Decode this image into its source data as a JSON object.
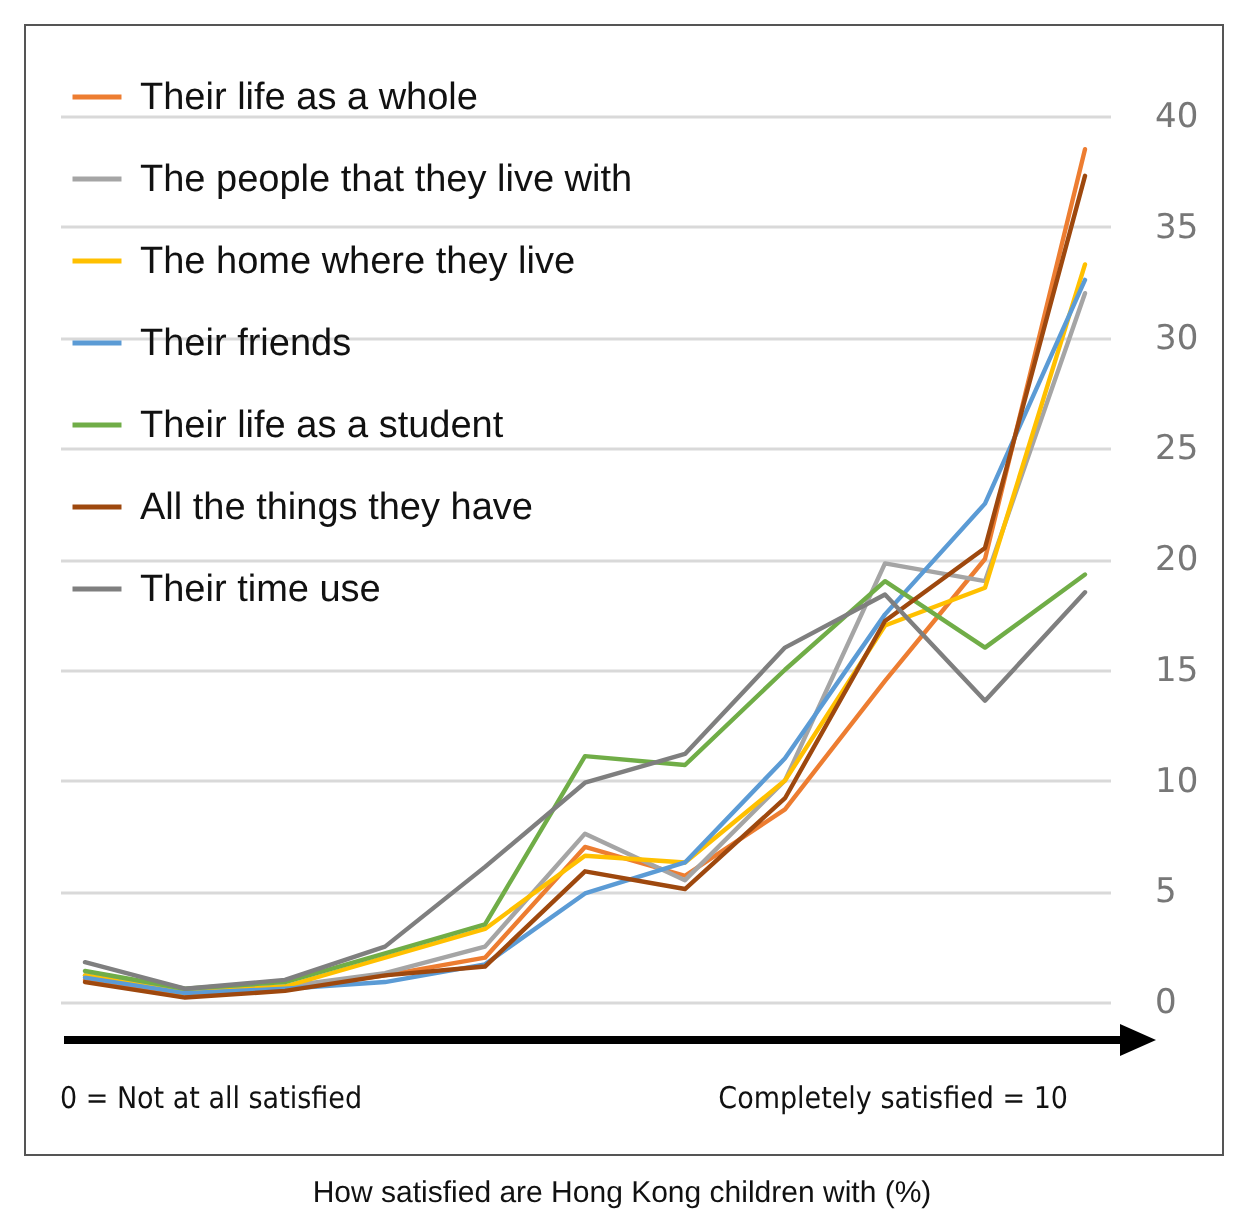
{
  "chart_data": {
    "type": "line",
    "title": "How satisfied are Hong Kong children with (%)",
    "annotations": [
      "0 = Not at all satisfied",
      "Completely satisfied = 10"
    ],
    "categories": [
      null,
      null,
      null,
      null,
      null,
      null,
      null,
      null,
      null,
      null,
      null
    ],
    "ylim": [
      0,
      40
    ],
    "yticks": [
      0,
      5,
      10,
      15,
      20,
      25,
      30,
      35,
      40
    ],
    "grid": "y",
    "legend": "top left",
    "series": [
      {
        "name": "Their life as a whole",
        "color": "#ed7d31",
        "values": [
          1.0,
          0.3,
          0.6,
          1.2,
          2.0,
          7.0,
          5.7,
          8.7,
          14.5,
          20.0,
          38.5
        ]
      },
      {
        "name": "The people that they live with",
        "color": "#a5a5a5",
        "values": [
          1.2,
          0.5,
          0.7,
          1.3,
          2.5,
          7.6,
          5.5,
          10.0,
          19.8,
          19.0,
          32.0
        ]
      },
      {
        "name": "The home where they live",
        "color": "#ffc000",
        "values": [
          1.2,
          0.4,
          0.7,
          2.0,
          3.3,
          6.6,
          6.3,
          10.0,
          17.0,
          18.7,
          33.3
        ]
      },
      {
        "name": "Their friends",
        "color": "#5b9bd5",
        "values": [
          1.1,
          0.4,
          0.6,
          0.9,
          1.7,
          4.9,
          6.3,
          11.0,
          17.5,
          22.5,
          32.6
        ]
      },
      {
        "name": "Their life as a student",
        "color": "#70ad47",
        "values": [
          1.4,
          0.6,
          0.9,
          2.2,
          3.5,
          11.1,
          10.7,
          15.0,
          19.0,
          16.0,
          19.3
        ]
      },
      {
        "name": "All the things they have",
        "color": "#9e480e",
        "values": [
          0.9,
          0.2,
          0.5,
          1.2,
          1.6,
          5.9,
          5.1,
          9.2,
          17.2,
          20.5,
          37.3
        ]
      },
      {
        "name": "Their time use",
        "color": "#7f7f7f",
        "values": [
          1.8,
          0.6,
          1.0,
          2.5,
          6.1,
          9.9,
          11.2,
          16.0,
          18.4,
          13.6,
          18.5
        ]
      }
    ]
  }
}
